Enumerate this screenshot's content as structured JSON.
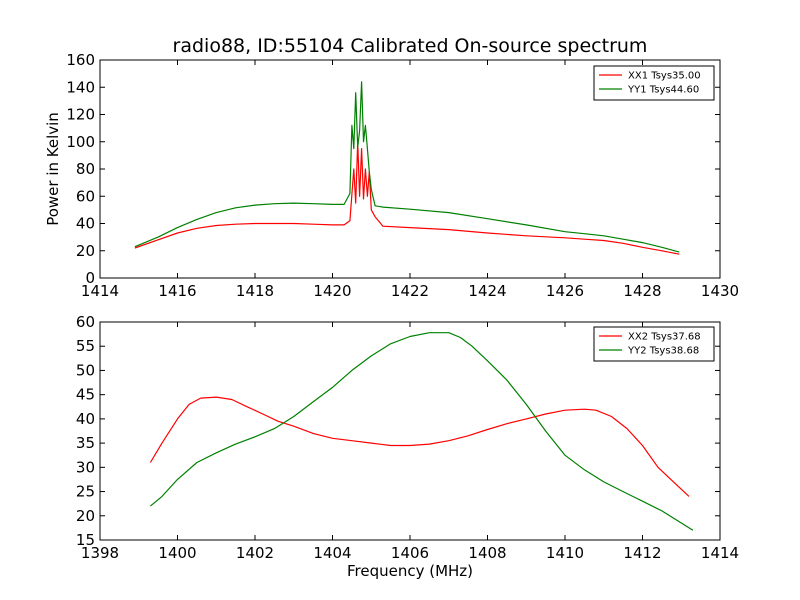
{
  "figure_title": "radio88, ID:55104 Calibrated On-source spectrum",
  "chart_data": [
    {
      "type": "line",
      "title": "radio88, ID:55104 Calibrated On-source spectrum",
      "xlabel": "",
      "ylabel": "Power in Kelvin",
      "xlim": [
        1414,
        1430
      ],
      "ylim": [
        0,
        160
      ],
      "xticks": [
        1414,
        1416,
        1418,
        1420,
        1422,
        1424,
        1426,
        1428,
        1430
      ],
      "yticks": [
        0,
        20,
        40,
        60,
        80,
        100,
        120,
        140,
        160
      ],
      "grid": false,
      "legend_position": "top-right",
      "series": [
        {
          "name": "XX1 Tsys35.00",
          "color": "#ff0000",
          "x": [
            1414.9,
            1415.5,
            1416.0,
            1416.5,
            1417.0,
            1417.5,
            1418.0,
            1418.5,
            1419.0,
            1419.5,
            1420.0,
            1420.3,
            1420.45,
            1420.55,
            1420.6,
            1420.65,
            1420.7,
            1420.75,
            1420.8,
            1420.85,
            1420.9,
            1420.95,
            1421.0,
            1421.1,
            1421.3,
            1422.0,
            1423.0,
            1424.0,
            1425.0,
            1426.0,
            1426.5,
            1427.0,
            1427.5,
            1428.0,
            1428.5,
            1428.95
          ],
          "y": [
            22,
            28,
            33,
            36.5,
            38.5,
            39.5,
            40,
            40,
            40,
            39.5,
            39,
            39,
            42,
            80,
            55,
            100,
            60,
            95,
            58,
            80,
            60,
            78,
            50,
            45,
            38,
            37,
            35.5,
            33,
            31,
            29.5,
            28.5,
            27.5,
            25.5,
            22.5,
            20,
            17.5
          ]
        },
        {
          "name": "YY1 Tsys44.60",
          "color": "#008000",
          "x": [
            1414.9,
            1415.5,
            1416.0,
            1416.5,
            1417.0,
            1417.5,
            1418.0,
            1418.5,
            1419.0,
            1419.5,
            1420.0,
            1420.3,
            1420.45,
            1420.5,
            1420.55,
            1420.6,
            1420.65,
            1420.7,
            1420.75,
            1420.8,
            1420.85,
            1420.9,
            1420.95,
            1421.0,
            1421.1,
            1421.3,
            1422.0,
            1423.0,
            1424.0,
            1425.0,
            1426.0,
            1426.5,
            1427.0,
            1427.5,
            1428.0,
            1428.5,
            1428.95
          ],
          "y": [
            23,
            30,
            37,
            43,
            48,
            51.5,
            53.5,
            54.5,
            55,
            54.5,
            54,
            54,
            62,
            112,
            95,
            136,
            96,
            108,
            144,
            100,
            112,
            95,
            78,
            65,
            53,
            52,
            50.5,
            48,
            43.5,
            39,
            34,
            32.5,
            31,
            28.5,
            26,
            22.5,
            19
          ]
        }
      ]
    },
    {
      "type": "line",
      "title": "",
      "xlabel": "Frequency (MHz)",
      "ylabel": "",
      "xlim": [
        1398,
        1414
      ],
      "ylim": [
        15,
        60
      ],
      "xticks": [
        1398,
        1400,
        1402,
        1404,
        1406,
        1408,
        1410,
        1412,
        1414
      ],
      "yticks": [
        15,
        20,
        25,
        30,
        35,
        40,
        45,
        50,
        55,
        60
      ],
      "grid": false,
      "legend_position": "top-right",
      "series": [
        {
          "name": "XX2 Tsys37.68",
          "color": "#ff0000",
          "x": [
            1399.3,
            1399.6,
            1400.0,
            1400.3,
            1400.6,
            1401.0,
            1401.4,
            1401.8,
            1402.2,
            1402.6,
            1403.0,
            1403.5,
            1404.0,
            1404.5,
            1405.0,
            1405.5,
            1406.0,
            1406.5,
            1407.0,
            1407.5,
            1408.0,
            1408.5,
            1409.0,
            1409.5,
            1410.0,
            1410.5,
            1410.8,
            1411.2,
            1411.6,
            1412.0,
            1412.4,
            1412.8,
            1413.2
          ],
          "y": [
            31,
            35,
            40,
            43,
            44.3,
            44.5,
            44,
            42.5,
            41,
            39.5,
            38.5,
            37,
            36,
            35.5,
            35,
            34.5,
            34.5,
            34.8,
            35.5,
            36.5,
            37.8,
            39,
            40,
            41,
            41.8,
            42,
            41.8,
            40.5,
            38,
            34.5,
            30,
            27,
            24
          ]
        },
        {
          "name": "YY2 Tsys38.68",
          "color": "#008000",
          "x": [
            1399.3,
            1399.6,
            1400.0,
            1400.5,
            1401.0,
            1401.5,
            1402.0,
            1402.5,
            1403.0,
            1403.5,
            1404.0,
            1404.5,
            1405.0,
            1405.5,
            1406.0,
            1406.5,
            1407.0,
            1407.3,
            1407.6,
            1408.0,
            1408.5,
            1409.0,
            1409.5,
            1410.0,
            1410.5,
            1411.0,
            1411.5,
            1412.0,
            1412.5,
            1413.0,
            1413.3
          ],
          "y": [
            22,
            24,
            27.5,
            31,
            33,
            34.8,
            36.3,
            38,
            40.5,
            43.5,
            46.5,
            50,
            53,
            55.5,
            57,
            57.8,
            57.8,
            56.8,
            55,
            52,
            48,
            43,
            37.5,
            32.5,
            29.5,
            27,
            25,
            23,
            21,
            18.5,
            17
          ]
        }
      ]
    }
  ]
}
